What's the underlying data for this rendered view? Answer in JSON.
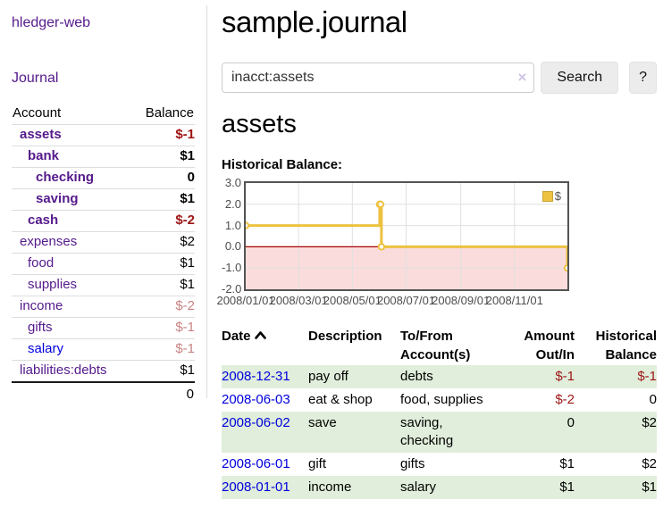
{
  "app": {
    "title": "hledger-web"
  },
  "colors": {
    "link_purple": "#551a8b",
    "link_blue": "#0000dd",
    "negative_strong": "#9d1515",
    "negative_weak": "#c98383",
    "row_stripe_green": "#e0eedb",
    "chart_gold": "#edc240",
    "chart_negative_region": "#fbdcdc",
    "chart_zero_line": "#a80000",
    "button_bg": "#ececec"
  },
  "sidebar": {
    "journal_label": "Journal",
    "account_header": "Account",
    "balance_header": "Balance",
    "rows": [
      {
        "account": "assets",
        "balance": "$-1",
        "indent": 1,
        "emphasis": true,
        "link_color": "purple"
      },
      {
        "account": "bank",
        "balance": "$1",
        "indent": 2,
        "emphasis": true,
        "link_color": "purple"
      },
      {
        "account": "checking",
        "balance": "0",
        "indent": 3,
        "emphasis": true,
        "link_color": "purple"
      },
      {
        "account": "saving",
        "balance": "$1",
        "indent": 3,
        "emphasis": true,
        "link_color": "purple"
      },
      {
        "account": "cash",
        "balance": "$-2",
        "indent": 2,
        "emphasis": true,
        "link_color": "purple"
      },
      {
        "account": "expenses",
        "balance": "$2",
        "indent": 1,
        "emphasis": false,
        "link_color": "purple"
      },
      {
        "account": "food",
        "balance": "$1",
        "indent": 2,
        "emphasis": false,
        "link_color": "purple"
      },
      {
        "account": "supplies",
        "balance": "$1",
        "indent": 2,
        "emphasis": false,
        "link_color": "purple"
      },
      {
        "account": "income",
        "balance": "$-2",
        "indent": 1,
        "emphasis": false,
        "link_color": "purple"
      },
      {
        "account": "gifts",
        "balance": "$-1",
        "indent": 2,
        "emphasis": false,
        "link_color": "purple"
      },
      {
        "account": "salary",
        "balance": "$-1",
        "indent": 2,
        "emphasis": false,
        "link_color": "blue"
      },
      {
        "account": "liabilities:debts",
        "balance": "$1",
        "indent": 1,
        "emphasis": false,
        "link_color": "purple"
      }
    ],
    "total": "0"
  },
  "header": {
    "title": "sample.journal"
  },
  "search": {
    "value": "inacct:assets",
    "clear_icon": "×",
    "button_label": "Search",
    "help_label": "?"
  },
  "account_page": {
    "title": "assets",
    "chart_label": "Historical Balance:"
  },
  "chart_data": {
    "type": "line",
    "style": "step",
    "series": [
      {
        "name": "$",
        "color": "#edc240",
        "points": [
          [
            "2008-01-01",
            1
          ],
          [
            "2008-06-01",
            2
          ],
          [
            "2008-06-02",
            2
          ],
          [
            "2008-06-03",
            0
          ],
          [
            "2008-12-31",
            -1
          ]
        ]
      }
    ],
    "x_start": "2008-01-01",
    "x_days": 365,
    "x_ticks": [
      "2008/01/01",
      "2008/03/01",
      "2008/05/01",
      "2008/07/01",
      "2008/09/01",
      "2008/11/01"
    ],
    "y_ticks": [
      "3.0",
      "2.0",
      "1.0",
      "0.0",
      "-1.0",
      "-2.0"
    ],
    "ylim": [
      -2,
      3
    ],
    "grid": true,
    "legend": {
      "label": "$",
      "position": "top-right"
    }
  },
  "register": {
    "headers": {
      "date": "Date",
      "description": "Description",
      "tofrom": "To/From Account(s)",
      "amount": "Amount Out/In",
      "balance": "Historical Balance"
    },
    "rows": [
      {
        "date": "2008-12-31",
        "description": "pay off",
        "tofrom": "debts",
        "amount": "$-1",
        "balance": "$-1"
      },
      {
        "date": "2008-06-03",
        "description": "eat & shop",
        "tofrom": "food, supplies",
        "amount": "$-2",
        "balance": "0"
      },
      {
        "date": "2008-06-02",
        "description": "save",
        "tofrom": "saving, checking",
        "amount": "0",
        "balance": "$2"
      },
      {
        "date": "2008-06-01",
        "description": "gift",
        "tofrom": "gifts",
        "amount": "$1",
        "balance": "$2"
      },
      {
        "date": "2008-01-01",
        "description": "income",
        "tofrom": "salary",
        "amount": "$1",
        "balance": "$1"
      }
    ]
  }
}
